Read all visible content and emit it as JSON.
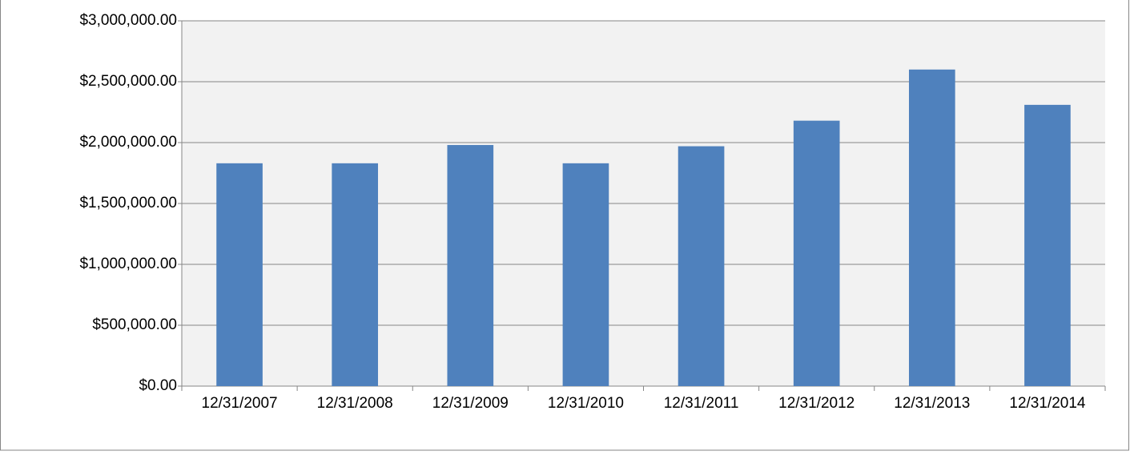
{
  "chart_data": {
    "type": "bar",
    "categories": [
      "12/31/2007",
      "12/31/2008",
      "12/31/2009",
      "12/31/2010",
      "12/31/2011",
      "12/31/2012",
      "12/31/2013",
      "12/31/2014"
    ],
    "values": [
      1830000,
      1830000,
      1980000,
      1830000,
      1970000,
      2180000,
      2600000,
      2310000
    ],
    "color": "#4f81bd",
    "ylim": [
      0,
      3000000
    ],
    "yticks": [
      {
        "value": 0,
        "label": "$0.00"
      },
      {
        "value": 500000,
        "label": "$500,000.00"
      },
      {
        "value": 1000000,
        "label": "$1,000,000.00"
      },
      {
        "value": 1500000,
        "label": "$1,500,000.00"
      },
      {
        "value": 2000000,
        "label": "$2,000,000.00"
      },
      {
        "value": 2500000,
        "label": "$2,500,000.00"
      },
      {
        "value": 3000000,
        "label": "$3,000,000.00"
      }
    ],
    "grid": true
  }
}
